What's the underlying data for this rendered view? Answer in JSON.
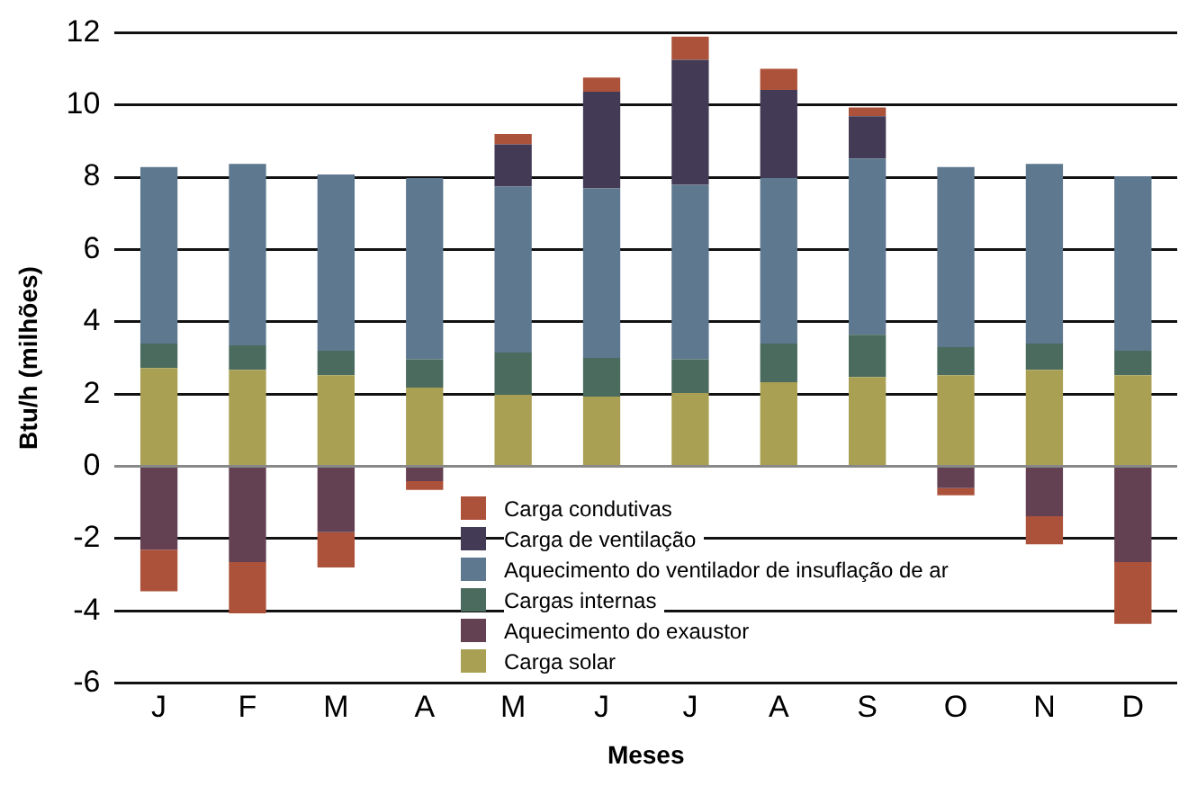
{
  "chart_data": {
    "type": "bar",
    "stacked": true,
    "xlabel": "Meses",
    "ylabel": "Btu/h (milhões)",
    "categories": [
      "J",
      "F",
      "M",
      "A",
      "M",
      "J",
      "J",
      "A",
      "S",
      "O",
      "N",
      "D"
    ],
    "series": [
      {
        "name": "Carga solar",
        "color": "#a9a053",
        "values": [
          2.72,
          2.67,
          2.52,
          2.18,
          1.98,
          1.93,
          2.03,
          2.33,
          2.47,
          2.52,
          2.67,
          2.52
        ]
      },
      {
        "name": "Aquecimento do exaustor",
        "color": "#634152",
        "values": [
          -2.31,
          -2.65,
          -1.82,
          -0.41,
          null,
          null,
          null,
          null,
          null,
          -0.6,
          -1.38,
          -2.65
        ]
      },
      {
        "name": "Cargas internas",
        "color": "#4a6b5e",
        "values": [
          0.68,
          0.68,
          0.68,
          0.78,
          1.17,
          1.07,
          0.93,
          1.07,
          1.17,
          0.78,
          0.73,
          0.68
        ]
      },
      {
        "name": "Aquecimento do ventilador de insuflação de ar",
        "color": "#5d788f",
        "values": [
          4.88,
          5.02,
          4.88,
          5.02,
          4.59,
          4.69,
          4.83,
          4.58,
          4.88,
          4.98,
          4.97,
          4.83
        ]
      },
      {
        "name": "Carga de ventilação",
        "color": "#433a55",
        "values": [
          null,
          null,
          null,
          null,
          1.17,
          2.68,
          3.46,
          2.44,
          1.17,
          null,
          null,
          null
        ]
      },
      {
        "name": "Carga condutivas",
        "color": "#ad523a",
        "values": [
          -1.15,
          -1.42,
          -0.98,
          -0.24,
          0.29,
          0.39,
          0.64,
          0.58,
          0.24,
          -0.2,
          -0.78,
          -1.71
        ]
      }
    ],
    "ylim": [
      -6,
      12
    ],
    "yticks": [
      -6,
      -4,
      -2,
      0,
      2,
      4,
      6,
      8,
      10,
      12
    ],
    "grid": "y",
    "legend": "bottom"
  }
}
